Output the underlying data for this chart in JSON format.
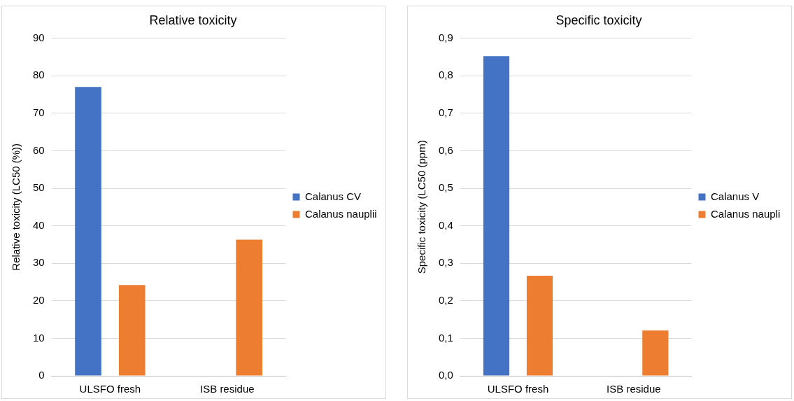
{
  "chart_data": [
    {
      "type": "bar",
      "title": "Relative toxicity",
      "ylabel": "Relative toxicity (LC50 (%))",
      "categories": [
        "ULSFO fresh",
        "ISB residue"
      ],
      "series": [
        {
          "name": "Calanus CV",
          "color": "#4472c4",
          "values": [
            77,
            null
          ]
        },
        {
          "name": "Calanus nauplii",
          "color": "#ed7d31",
          "values": [
            24.2,
            36.3
          ]
        }
      ],
      "ylim": [
        0,
        90
      ],
      "yticks": [
        0,
        10,
        20,
        30,
        40,
        50,
        60,
        70,
        80,
        90
      ],
      "grid": "y",
      "legend": "right"
    },
    {
      "type": "bar",
      "title": "Specific toxicity",
      "ylabel": "Specific toxicity (LC50 (ppm)",
      "categories": [
        "ULSFO fresh",
        "ISB residue"
      ],
      "series": [
        {
          "name": "Calanus V",
          "color": "#4472c4",
          "values": [
            0.852,
            null
          ]
        },
        {
          "name": "Calanus naupli",
          "color": "#ed7d31",
          "values": [
            0.267,
            0.121
          ]
        }
      ],
      "ylim": [
        0,
        0.9
      ],
      "yticks": [
        {
          "value": 0,
          "label": "0,0"
        },
        {
          "value": 0.1,
          "label": "0,1"
        },
        {
          "value": 0.2,
          "label": "0,2"
        },
        {
          "value": 0.3,
          "label": "0,3"
        },
        {
          "value": 0.4,
          "label": "0,4"
        },
        {
          "value": 0.5,
          "label": "0,5"
        },
        {
          "value": 0.6,
          "label": "0,6"
        },
        {
          "value": 0.7,
          "label": "0,7"
        },
        {
          "value": 0.8,
          "label": "0,8"
        },
        {
          "value": 0.9,
          "label": "0,9"
        }
      ],
      "grid": "y",
      "legend": "right"
    }
  ]
}
